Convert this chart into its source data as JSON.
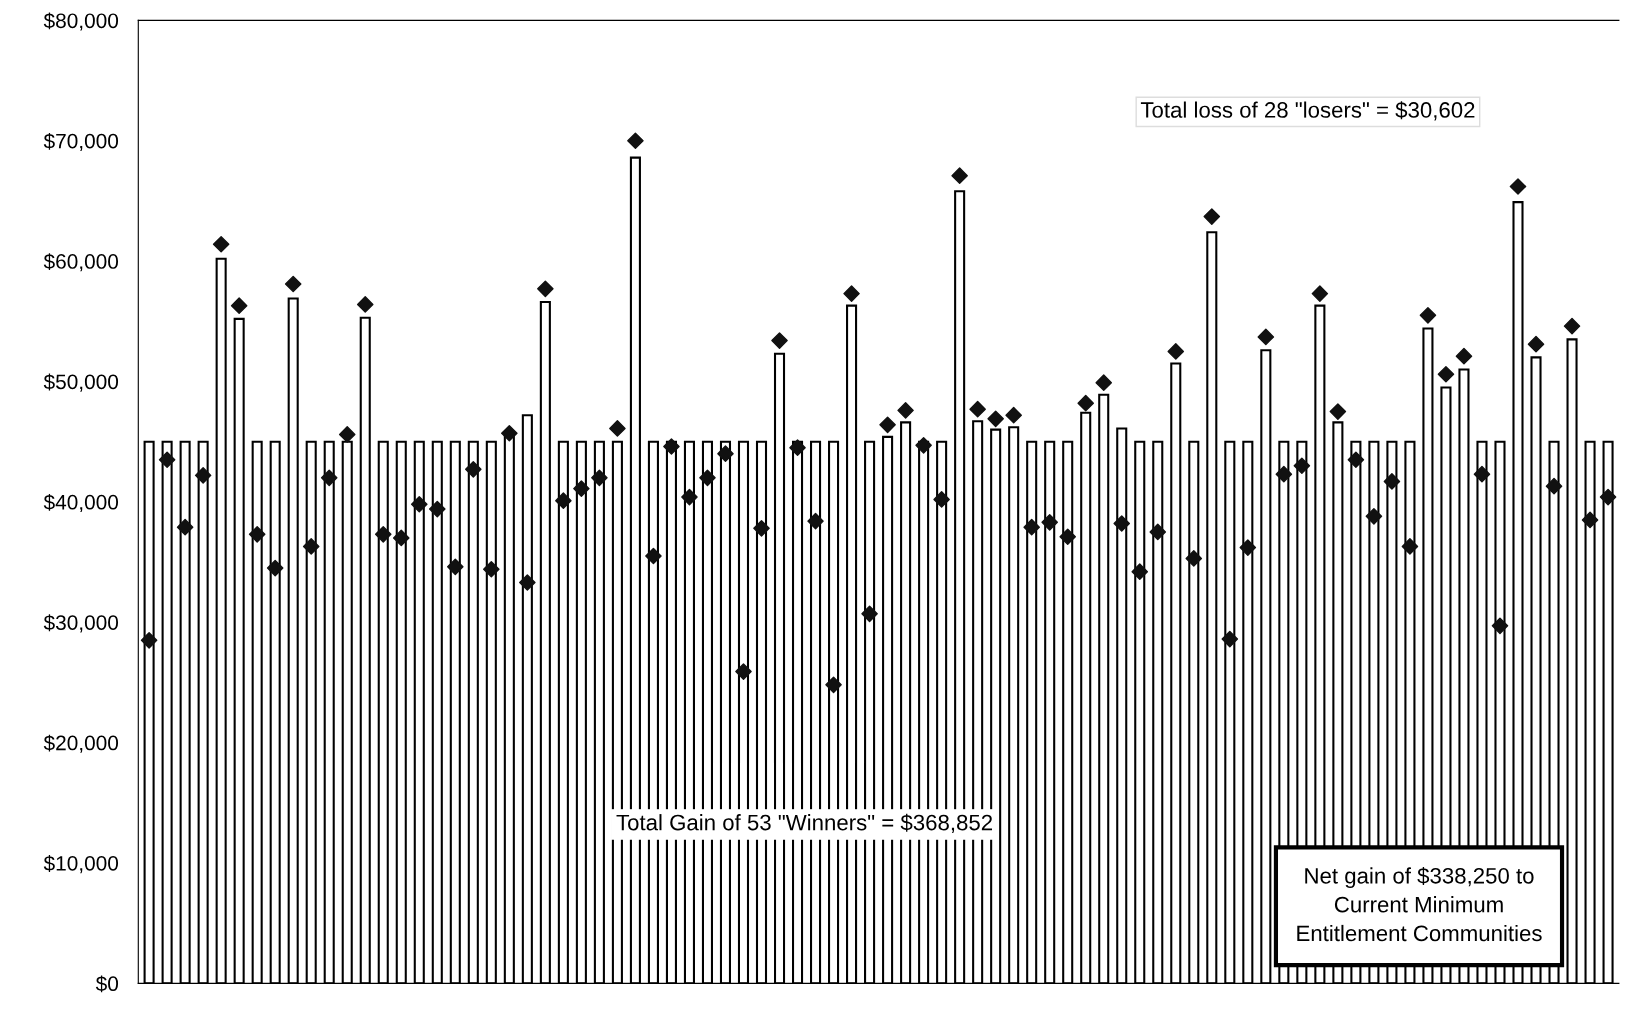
{
  "chart_data": {
    "type": "bar",
    "categories": [
      null,
      null,
      null,
      null,
      null,
      null,
      null,
      null,
      null,
      null,
      null,
      null,
      null,
      null,
      null,
      null,
      null,
      null,
      null,
      null,
      null,
      null,
      null,
      null,
      null,
      null,
      null,
      null,
      null,
      null,
      null,
      null,
      null,
      null,
      null,
      null,
      null,
      null,
      null,
      null,
      null,
      null,
      null,
      null,
      null,
      null,
      null,
      null,
      null,
      null,
      null,
      null,
      null,
      null,
      null,
      null,
      null,
      null,
      null,
      null,
      null,
      null,
      null,
      null,
      null,
      null,
      null,
      null,
      null,
      null,
      null,
      null,
      null,
      null,
      null,
      null,
      null,
      null,
      null,
      null,
      null,
      null
    ],
    "series": [
      {
        "color": "#ffffff",
        "values": [
          45000,
          45000,
          45000,
          45000,
          60200,
          55200,
          45000,
          45000,
          56900,
          45000,
          45000,
          45000,
          55300,
          45000,
          45000,
          45000,
          45000,
          45000,
          45000,
          45000,
          45500,
          47200,
          56600,
          45000,
          45000,
          45000,
          45000,
          68600,
          45000,
          45000,
          45000,
          45000,
          45000,
          45000,
          45000,
          52300,
          45000,
          45000,
          45000,
          56300,
          45000,
          45400,
          46600,
          45000,
          45000,
          65800,
          46700,
          46000,
          46200,
          45000,
          45000,
          45000,
          47400,
          48900,
          46100,
          45000,
          45000,
          51500,
          45000,
          62400,
          45000,
          45000,
          52600,
          45000,
          45000,
          56300,
          46600,
          45000,
          45000,
          45000,
          45000,
          54400,
          49500,
          51000,
          45000,
          45000,
          64900,
          52000,
          45000,
          53500,
          45000,
          45000
        ]
      },
      {
        "type": "scatter",
        "color": "#111111",
        "marker": "diamond",
        "values": [
          28500,
          43500,
          37900,
          42200,
          61400,
          56300,
          37300,
          34500,
          58100,
          36300,
          42000,
          45600,
          56400,
          37300,
          37000,
          39800,
          39400,
          34600,
          42700,
          34400,
          45700,
          33300,
          57700,
          40100,
          41100,
          42000,
          46100,
          70000,
          35500,
          44600,
          40400,
          42000,
          44000,
          25900,
          37800,
          53400,
          44500,
          38400,
          24800,
          57300,
          30700,
          46400,
          47600,
          44700,
          40200,
          67100,
          47700,
          46900,
          47200,
          37900,
          38300,
          37100,
          48200,
          49900,
          38200,
          34200,
          37500,
          52500,
          35300,
          63700,
          28600,
          36200,
          53700,
          42300,
          43000,
          57300,
          47500,
          43500,
          38800,
          41700,
          36300,
          55500,
          50600,
          52100,
          42300,
          29700,
          66200,
          53100,
          41300,
          54600,
          38500,
          40400
        ]
      }
    ],
    "ylim": [
      0,
      80000
    ],
    "yticks": [
      {
        "value": 0,
        "label": "$0"
      },
      {
        "value": 10000,
        "label": "$10,000"
      },
      {
        "value": 20000,
        "label": "$20,000"
      },
      {
        "value": 30000,
        "label": "$30,000"
      },
      {
        "value": 40000,
        "label": "$40,000"
      },
      {
        "value": 50000,
        "label": "$50,000"
      },
      {
        "value": 60000,
        "label": "$60,000"
      },
      {
        "value": 70000,
        "label": "$70,000"
      },
      {
        "value": 80000,
        "label": "$80,000"
      }
    ],
    "grid": false,
    "annotations": [
      "Total loss of 28 \"losers\" = $30,602",
      "Total Gain of 53 \"Winners\" = $368,852",
      "Net gain of $338,250 to\nCurrent Minimum\nEntitlement Communities"
    ]
  }
}
